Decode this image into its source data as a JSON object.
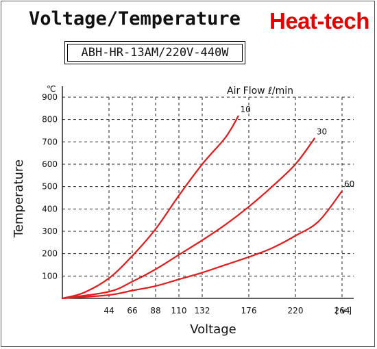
{
  "header": {
    "title": "Voltage/Temperature",
    "brand": "Heat-tech",
    "model": "ABH-HR-13AM/220V-440W"
  },
  "colors": {
    "series": "#e02020",
    "brand": "#e60000",
    "grid": "#222222"
  },
  "chart_data": {
    "type": "line",
    "xlabel": "Voltage",
    "ylabel": "Temperature",
    "y_unit": "℃",
    "x_unit": "[ v ]",
    "legend_title": "Air Flow ℓ/min",
    "xlim": [
      0,
      275
    ],
    "ylim": [
      0,
      900
    ],
    "x_ticks": [
      44,
      66,
      88,
      110,
      132,
      176,
      220,
      264
    ],
    "x_tick_labels": [
      "44",
      "66",
      "88",
      "110",
      "132",
      "176",
      "220",
      "264"
    ],
    "y_ticks": [
      100,
      200,
      300,
      400,
      500,
      600,
      700,
      800,
      900
    ],
    "y_tick_labels": [
      "100",
      "200",
      "300",
      "400",
      "500",
      "600",
      "700",
      "800",
      "900"
    ],
    "grid": true,
    "series": [
      {
        "name": "10",
        "x": [
          0,
          20,
          44,
          66,
          88,
          110,
          132,
          154,
          166
        ],
        "y": [
          0,
          25,
          90,
          190,
          310,
          460,
          600,
          720,
          815
        ]
      },
      {
        "name": "30",
        "x": [
          0,
          44,
          66,
          88,
          110,
          132,
          154,
          176,
          198,
          220,
          238
        ],
        "y": [
          0,
          30,
          75,
          130,
          195,
          260,
          330,
          410,
          500,
          600,
          715
        ]
      },
      {
        "name": "60",
        "x": [
          0,
          44,
          66,
          88,
          110,
          132,
          154,
          176,
          198,
          220,
          242,
          264
        ],
        "y": [
          0,
          15,
          35,
          55,
          85,
          115,
          150,
          185,
          225,
          280,
          345,
          480
        ]
      }
    ]
  }
}
